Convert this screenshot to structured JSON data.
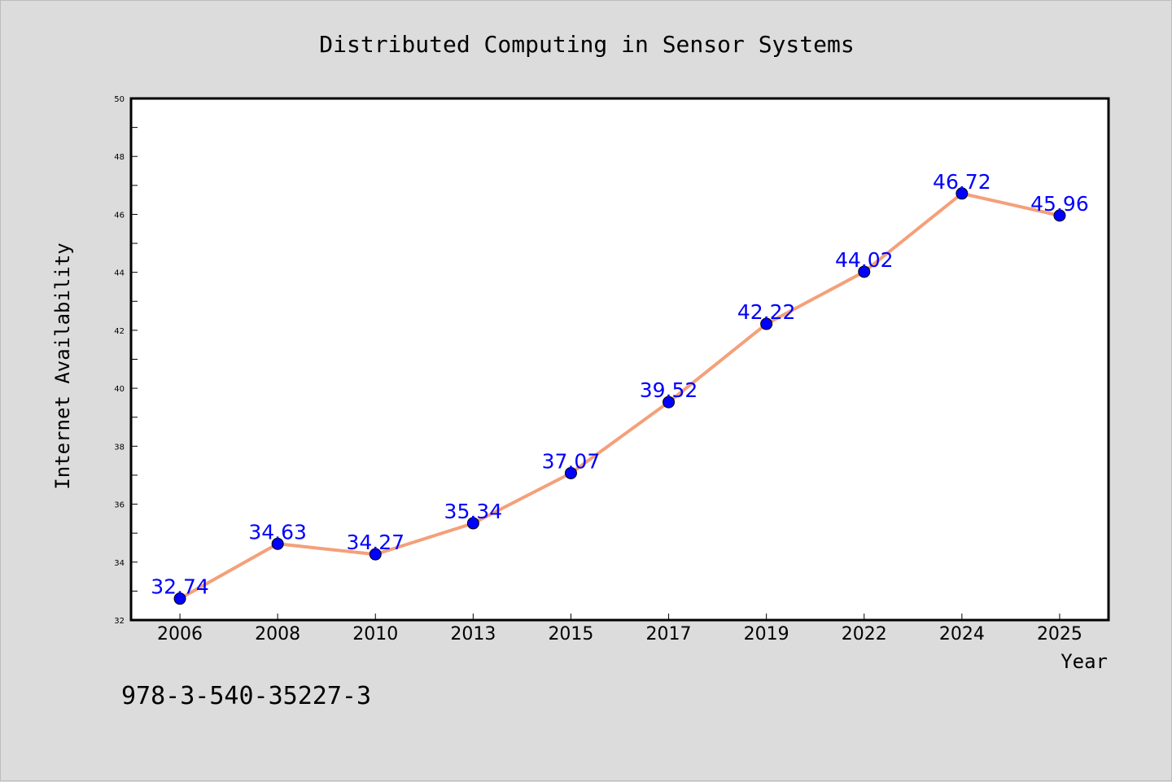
{
  "colors": {
    "background": "#dcdcdc",
    "plot_background": "#ffffff",
    "line": "#f4a07a",
    "marker": "#0000ff",
    "data_label": "#0000ff"
  },
  "footnote": "978-3-540-35227-3",
  "chart_data": {
    "type": "line",
    "title": "Distributed Computing in Sensor Systems",
    "xlabel": "Year",
    "ylabel": "Internet Availability",
    "categories": [
      "2006",
      "2008",
      "2010",
      "2013",
      "2015",
      "2017",
      "2019",
      "2022",
      "2024",
      "2025"
    ],
    "series": [
      {
        "values": [
          32.74,
          34.63,
          34.27,
          35.34,
          37.07,
          39.52,
          42.22,
          44.02,
          46.72,
          45.96
        ]
      }
    ],
    "data_labels": [
      "32.74",
      "34.63",
      "34.27",
      "35.34",
      "37.07",
      "39.52",
      "42.22",
      "44.02",
      "46.72",
      "45.96"
    ],
    "ylim": [
      32,
      50
    ],
    "yticks": [
      32,
      34,
      36,
      38,
      40,
      42,
      44,
      46,
      48,
      50
    ],
    "grid": false,
    "legend": "none"
  }
}
